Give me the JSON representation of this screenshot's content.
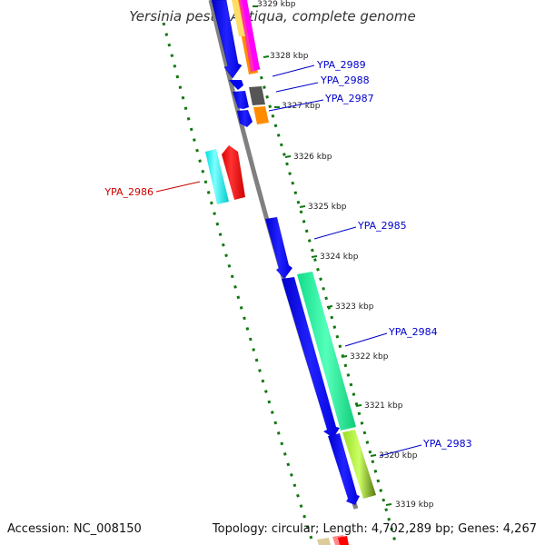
{
  "title": "Yersinia pestis Antiqua, complete genome",
  "footer": {
    "accession": "Accession: NC_008150",
    "summary": "Topology: circular; Length: 4,702,289 bp; Genes: 4,267"
  },
  "scale_labels": [
    "3329 kbp",
    "3328 kbp",
    "3327 kbp",
    "3326 kbp",
    "3325 kbp",
    "3324 kbp",
    "3323 kbp",
    "3322 kbp",
    "3321 kbp",
    "3320 kbp",
    "3319 kbp"
  ],
  "genes": [
    {
      "label": "YPA_2989",
      "color": "#0000cc"
    },
    {
      "label": "YPA_2988",
      "color": "#0000cc"
    },
    {
      "label": "YPA_2987",
      "color": "#0000cc"
    },
    {
      "label": "YPA_2986",
      "color": "#cc0000"
    },
    {
      "label": "YPA_2985",
      "color": "#0000cc"
    },
    {
      "label": "YPA_2984",
      "color": "#0000cc"
    },
    {
      "label": "YPA_2983",
      "color": "#0000cc"
    }
  ],
  "colors": {
    "backbone": "#808080",
    "forward_cds": "#0000ff",
    "reverse_cds": "#ff0000",
    "cyan_feature": "#00ffff",
    "green_feature": "#22ee99",
    "lime_feature": "#aaee33",
    "orange_feature": "#ff8c00",
    "gray_feature": "#555555",
    "tick_green": "#117711"
  }
}
